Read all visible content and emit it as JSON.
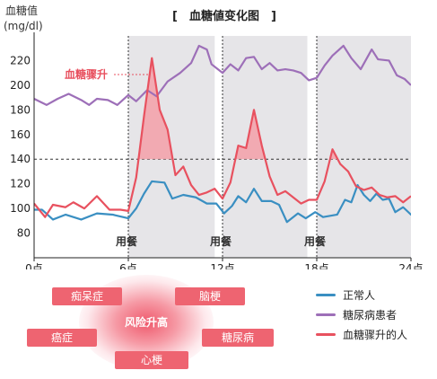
{
  "chart_data": {
    "type": "line",
    "title": "[　血糖値变化图　]",
    "ylabel": "血糖值",
    "yunit": "(mg/dl)",
    "ylim": [
      60,
      240
    ],
    "yticks": [
      80,
      100,
      120,
      140,
      160,
      180,
      200,
      220
    ],
    "xlim": [
      0,
      24
    ],
    "xticks": [
      {
        "value": 0,
        "label": "0点"
      },
      {
        "value": 6,
        "label": "6点"
      },
      {
        "value": 12,
        "label": "12点"
      },
      {
        "value": 18,
        "label": "18点"
      },
      {
        "value": 24,
        "label": "24点"
      }
    ],
    "meals": [
      {
        "x": 6,
        "label": "用餐"
      },
      {
        "x": 12,
        "label": "用餐"
      },
      {
        "x": 18,
        "label": "用餐"
      }
    ],
    "threshold": 140,
    "annotation": "血糖骤升",
    "series": [
      {
        "name": "正常人",
        "color": "#3a8fc2",
        "points": [
          [
            0,
            99
          ],
          [
            0.5,
            99
          ],
          [
            1.2,
            91
          ],
          [
            2,
            95
          ],
          [
            3,
            91
          ],
          [
            4,
            96
          ],
          [
            5,
            95
          ],
          [
            6,
            92
          ],
          [
            6.5,
            100
          ],
          [
            7,
            112
          ],
          [
            7.5,
            122
          ],
          [
            8.3,
            121
          ],
          [
            8.8,
            108
          ],
          [
            9.5,
            111
          ],
          [
            10.3,
            109
          ],
          [
            11,
            104
          ],
          [
            11.6,
            104
          ],
          [
            12.1,
            96
          ],
          [
            12.6,
            102
          ],
          [
            13,
            110
          ],
          [
            13.5,
            105
          ],
          [
            14,
            116
          ],
          [
            14.5,
            106
          ],
          [
            15.1,
            106
          ],
          [
            15.6,
            103
          ],
          [
            16.1,
            89
          ],
          [
            16.8,
            96
          ],
          [
            17.3,
            92
          ],
          [
            17.9,
            97
          ],
          [
            18.4,
            93
          ],
          [
            19.3,
            95
          ],
          [
            19.8,
            107
          ],
          [
            20.2,
            105
          ],
          [
            20.6,
            119
          ],
          [
            21,
            111
          ],
          [
            21.4,
            106
          ],
          [
            21.8,
            112
          ],
          [
            22.2,
            107
          ],
          [
            22.6,
            108
          ],
          [
            23,
            97
          ],
          [
            23.5,
            101
          ],
          [
            24,
            95
          ],
          [
            24.3,
            95
          ],
          [
            24.6,
            91
          ],
          [
            25,
            93
          ]
        ]
      },
      {
        "name": "糖尿病患者",
        "color": "#9d6fb8",
        "points": [
          [
            0,
            189
          ],
          [
            0.8,
            184
          ],
          [
            1.5,
            189
          ],
          [
            2.2,
            193
          ],
          [
            3,
            188
          ],
          [
            3.5,
            184
          ],
          [
            4,
            189
          ],
          [
            4.7,
            188
          ],
          [
            5.3,
            184
          ],
          [
            6,
            192
          ],
          [
            6.5,
            187
          ],
          [
            7.2,
            196
          ],
          [
            7.8,
            191
          ],
          [
            8.5,
            203
          ],
          [
            9.3,
            210
          ],
          [
            10,
            218
          ],
          [
            10.5,
            232
          ],
          [
            11,
            229
          ],
          [
            11.3,
            217
          ],
          [
            12,
            210
          ],
          [
            12.5,
            217
          ],
          [
            13,
            212
          ],
          [
            13.5,
            222
          ],
          [
            14,
            223
          ],
          [
            14.5,
            213
          ],
          [
            15,
            218
          ],
          [
            15.5,
            212
          ],
          [
            16,
            213
          ],
          [
            16.5,
            212
          ],
          [
            17,
            210
          ],
          [
            17.5,
            204
          ],
          [
            18,
            206
          ],
          [
            18.5,
            216
          ],
          [
            19,
            224
          ],
          [
            19.7,
            232
          ],
          [
            20.2,
            222
          ],
          [
            20.8,
            213
          ],
          [
            21.5,
            229
          ],
          [
            21.9,
            221
          ],
          [
            22.6,
            220
          ],
          [
            23.1,
            208
          ],
          [
            23.6,
            205
          ],
          [
            24,
            200
          ]
        ]
      },
      {
        "name": "血糖骤升的人",
        "color": "#e8515f",
        "points": [
          [
            0,
            104
          ],
          [
            0.7,
            93
          ],
          [
            1.2,
            103
          ],
          [
            2,
            101
          ],
          [
            2.5,
            105
          ],
          [
            3.2,
            100
          ],
          [
            4,
            110
          ],
          [
            4.8,
            99
          ],
          [
            5.5,
            99
          ],
          [
            6,
            98
          ],
          [
            6.5,
            125
          ],
          [
            7,
            175
          ],
          [
            7.5,
            222
          ],
          [
            8,
            180
          ],
          [
            8.5,
            164
          ],
          [
            9,
            127
          ],
          [
            9.5,
            134
          ],
          [
            10,
            119
          ],
          [
            10.5,
            111
          ],
          [
            11,
            113
          ],
          [
            11.5,
            116
          ],
          [
            12,
            108
          ],
          [
            12.5,
            121
          ],
          [
            13,
            151
          ],
          [
            13.5,
            149
          ],
          [
            14,
            180
          ],
          [
            14.5,
            151
          ],
          [
            15,
            126
          ],
          [
            15.5,
            111
          ],
          [
            16,
            114
          ],
          [
            16.5,
            109
          ],
          [
            17,
            104
          ],
          [
            17.5,
            107
          ],
          [
            18,
            107
          ],
          [
            18.5,
            122
          ],
          [
            19,
            148
          ],
          [
            19.5,
            136
          ],
          [
            20,
            130
          ],
          [
            20.5,
            118
          ],
          [
            21,
            115
          ],
          [
            21.5,
            117
          ],
          [
            22,
            111
          ],
          [
            22.5,
            109
          ],
          [
            23,
            110
          ],
          [
            23.5,
            105
          ],
          [
            24,
            110
          ]
        ]
      }
    ],
    "legend": [
      "正常人",
      "糖尿病患者",
      "血糖骤升的人"
    ]
  },
  "risk": {
    "center": "风险升高",
    "items": [
      "痴呆症",
      "脑梗",
      "癌症",
      "糖尿病",
      "心梗"
    ]
  }
}
